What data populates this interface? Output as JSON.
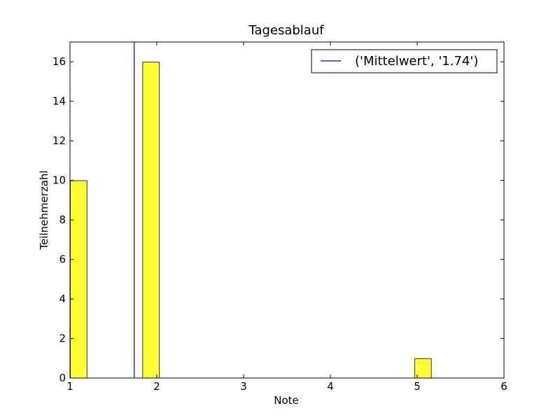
{
  "chart_data": {
    "type": "bar",
    "title": "Tagesablauf",
    "xlabel": "Note",
    "ylabel": "Teilnehmerzahl",
    "xlim": [
      1,
      6
    ],
    "ylim": [
      0,
      17
    ],
    "xticks": [
      1,
      2,
      3,
      4,
      5,
      6
    ],
    "yticks": [
      0,
      2,
      4,
      6,
      8,
      10,
      12,
      14,
      16
    ],
    "bars": [
      {
        "x0": 1.0,
        "x1": 1.2,
        "value": 10
      },
      {
        "x0": 1.8333,
        "x1": 2.0333,
        "value": 16
      },
      {
        "x0": 4.9667,
        "x1": 5.1667,
        "value": 1
      }
    ],
    "bar_color": "#ffff33",
    "bar_edge_color": "#333333",
    "mean_line": {
      "x": 1.74,
      "color": "#0000cc"
    },
    "legend": {
      "label": "('Mittelwert', '1.74')",
      "placement": "top-right"
    },
    "grid": false
  }
}
